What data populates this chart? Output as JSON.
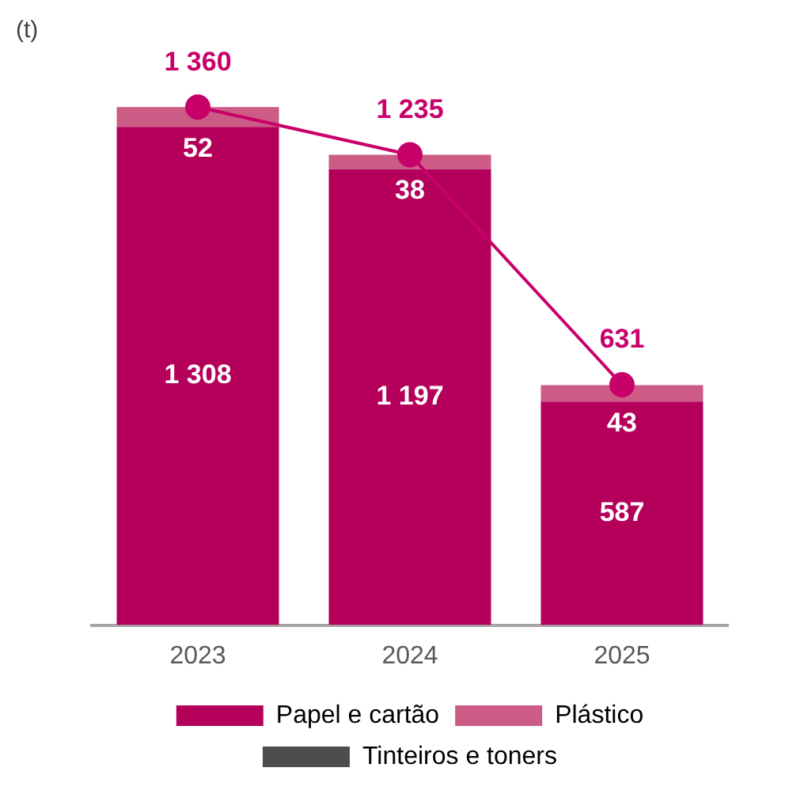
{
  "chart_data": {
    "type": "bar",
    "ylabel": "(t)",
    "categories": [
      "2023",
      "2024",
      "2025"
    ],
    "stacked": true,
    "legend": "bottom",
    "tick_labels": "x",
    "grid": false,
    "series": [
      {
        "name": "Papel e cartão",
        "color": "#b5005b",
        "values": [
          1308,
          1197,
          587
        ],
        "value_labels": [
          "1 308",
          "1 197",
          "587"
        ]
      },
      {
        "name": "Plástico",
        "color": "#cc5c86",
        "values": [
          52,
          38,
          43
        ],
        "value_labels": [
          "52",
          "38",
          "43"
        ]
      },
      {
        "name": "Tinteiros e toners",
        "color": "#4d4d4d",
        "values": [
          0,
          0,
          null
        ],
        "value_labels": [
          null,
          null,
          null
        ]
      },
      {
        "type": "line",
        "color": "#c8006a",
        "marker": "circle",
        "values": [
          1360,
          1235,
          631
        ],
        "value_labels": [
          "1 360",
          "1 235",
          "631"
        ]
      }
    ]
  }
}
